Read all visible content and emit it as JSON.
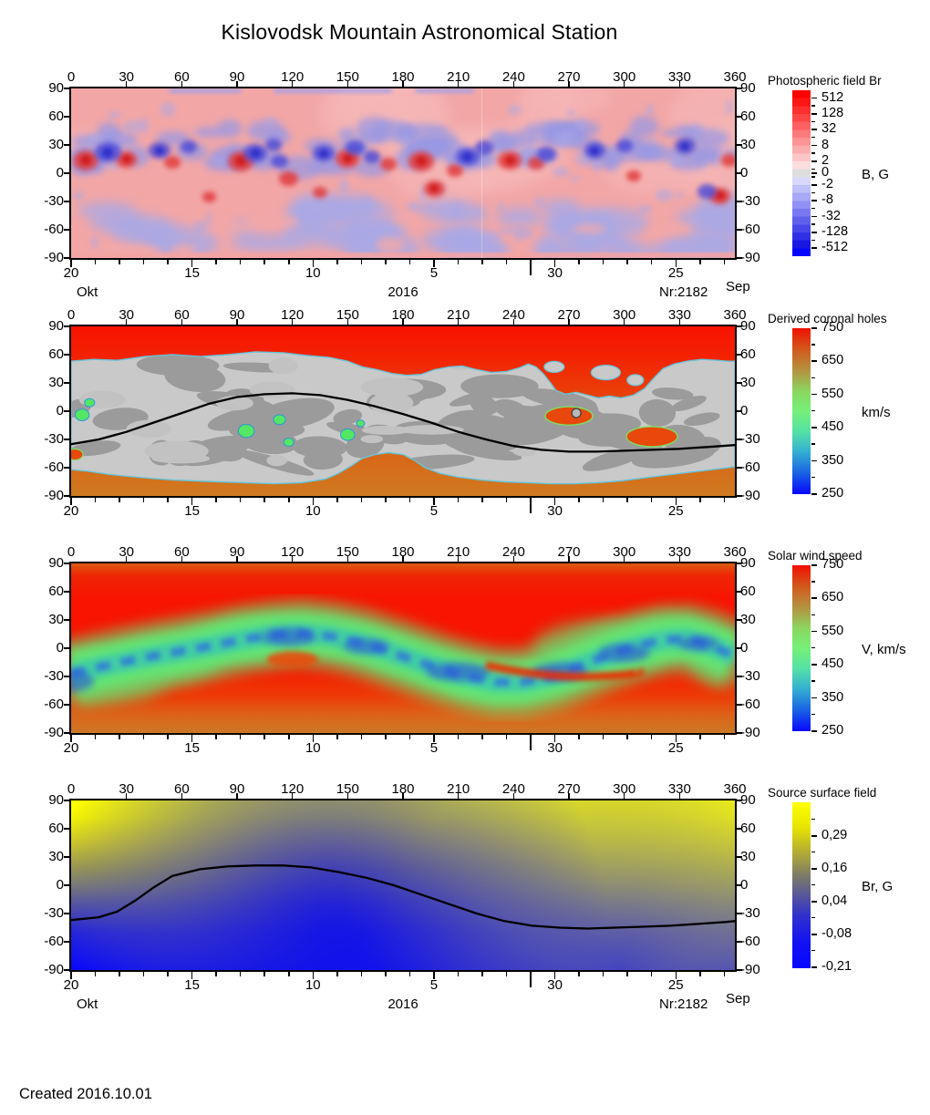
{
  "title": "Kislovodsk Mountain Astronomical Station",
  "created": "Created  2016.10.01",
  "axes": {
    "longitude_ticks": [
      0,
      30,
      60,
      90,
      120,
      150,
      180,
      210,
      240,
      270,
      300,
      330,
      360
    ],
    "latitude_ticks": [
      90,
      60,
      30,
      0,
      -30,
      -60,
      -90
    ],
    "day_labels": [
      "20",
      "15",
      "10",
      "5",
      "30",
      "25"
    ],
    "month_start": "Okt",
    "year": "2016",
    "rotation_number": "Nr:2182",
    "month_end": "Sep"
  },
  "colors": {
    "red": "#f81200",
    "orange": "#cf7a20",
    "gray_light": "#c9c9c9",
    "gray_dark": "#9b9b9b",
    "outline": "#66c4da",
    "map1_bg": "#f2a6a6",
    "map1_pink": "#f6b6b6",
    "map1_blue": "#9898e4",
    "map1_blue_soft": "#a9a9e6",
    "map1_blue_strong": "#4848d8",
    "map1_red_strong": "#e23c3c",
    "green_spot": "#55e664",
    "lagoon": "#e8480c",
    "band_green": "#62e874",
    "band_teal": "#38c8b0",
    "band_blue": "#2f6ee0",
    "yellow": "#ffff00",
    "deep_blue": "#0606ff",
    "line": "#000000"
  },
  "chart_data": [
    {
      "type": "heatmap",
      "title": "Photospheric field Br",
      "x_range": [
        0,
        360
      ],
      "y_range": [
        -90,
        90
      ],
      "description": "Mottled synoptic map of radial photospheric magnetic field: pale red positive background, pale blue negative patches in northern activity band (lat 10..45) and across the southern hemisphere, with saturated red and dark blue active-region blobs near lat 10..30.",
      "colorbar": {
        "title": "Photospheric field Br",
        "unit": "B, G",
        "tick_labels": [
          "512",
          "128",
          "32",
          "8",
          "2",
          "0",
          "-2",
          "-8",
          "-32",
          "-128",
          "-512"
        ],
        "band_colors": [
          "#fc0000",
          "#fc1616",
          "#fc2e2e",
          "#fc4646",
          "#fc6060",
          "#fc7a7a",
          "#fc9494",
          "#fcaeae",
          "#fcc6c6",
          "#fcdede",
          "#dedede",
          "#d8d8fc",
          "#c0c0fa",
          "#a8a8f8",
          "#9090f6",
          "#7878f2",
          "#6060ee",
          "#4848ea",
          "#3030e6",
          "#1818e2",
          "#0606fc"
        ]
      }
    },
    {
      "type": "heatmap",
      "title": "Derived coronal holes",
      "x_range": [
        0,
        360
      ],
      "y_range": [
        -90,
        90
      ],
      "description": "Red/orange polar coronal holes, light-gray closed-field belt with dark-gray patches, cyan hole boundaries, small green and orange equatorial holes, black neutral line.",
      "colorbar": {
        "title": "Derived coronal holes",
        "unit": "km/s",
        "tick_labels": [
          "750",
          "650",
          "550",
          "450",
          "350",
          "250"
        ],
        "gradient": [
          [
            0,
            "#f20f00"
          ],
          [
            0.14,
            "#cf6020"
          ],
          [
            0.27,
            "#b09a44"
          ],
          [
            0.38,
            "#8ad75e"
          ],
          [
            0.5,
            "#76f07a"
          ],
          [
            0.62,
            "#55e2a4"
          ],
          [
            0.74,
            "#35b2d0"
          ],
          [
            0.87,
            "#1a64e4"
          ],
          [
            1,
            "#0707fc"
          ]
        ]
      },
      "neutral_line": [
        [
          0,
          -35
        ],
        [
          15,
          -30
        ],
        [
          30,
          -22
        ],
        [
          45,
          -12
        ],
        [
          60,
          -2
        ],
        [
          75,
          8
        ],
        [
          90,
          15
        ],
        [
          105,
          18
        ],
        [
          120,
          19
        ],
        [
          135,
          17
        ],
        [
          150,
          12
        ],
        [
          165,
          5
        ],
        [
          180,
          -3
        ],
        [
          195,
          -12
        ],
        [
          210,
          -22
        ],
        [
          225,
          -30
        ],
        [
          240,
          -37
        ],
        [
          255,
          -41
        ],
        [
          270,
          -43
        ],
        [
          285,
          -43
        ],
        [
          300,
          -42
        ],
        [
          315,
          -41
        ],
        [
          330,
          -40
        ],
        [
          345,
          -38
        ],
        [
          360,
          -36
        ]
      ],
      "gray_region": {
        "north": [
          [
            0,
            53
          ],
          [
            12,
            55
          ],
          [
            25,
            54
          ],
          [
            40,
            58
          ],
          [
            55,
            60
          ],
          [
            70,
            58
          ],
          [
            85,
            60
          ],
          [
            100,
            63
          ],
          [
            115,
            62
          ],
          [
            128,
            59
          ],
          [
            140,
            57
          ],
          [
            150,
            53
          ],
          [
            158,
            47
          ],
          [
            166,
            44
          ],
          [
            174,
            40
          ],
          [
            182,
            38
          ],
          [
            190,
            39
          ],
          [
            197,
            44
          ],
          [
            205,
            47
          ],
          [
            212,
            48
          ],
          [
            220,
            44
          ],
          [
            228,
            41
          ],
          [
            236,
            42
          ],
          [
            243,
            46
          ],
          [
            248,
            50
          ],
          [
            252,
            47
          ],
          [
            256,
            40
          ],
          [
            260,
            30
          ],
          [
            263,
            22
          ],
          [
            268,
            18
          ],
          [
            274,
            20
          ],
          [
            280,
            17
          ],
          [
            286,
            14
          ],
          [
            292,
            16
          ],
          [
            298,
            14
          ],
          [
            305,
            17
          ],
          [
            311,
            24
          ],
          [
            316,
            35
          ],
          [
            321,
            45
          ],
          [
            327,
            50
          ],
          [
            334,
            53
          ],
          [
            342,
            55
          ],
          [
            350,
            54
          ],
          [
            356,
            53
          ],
          [
            360,
            53
          ]
        ],
        "south": [
          [
            0,
            -62
          ],
          [
            10,
            -64
          ],
          [
            20,
            -67
          ],
          [
            30,
            -69
          ],
          [
            42,
            -71
          ],
          [
            55,
            -73
          ],
          [
            68,
            -74
          ],
          [
            80,
            -75
          ],
          [
            95,
            -76
          ],
          [
            110,
            -77
          ],
          [
            125,
            -76
          ],
          [
            138,
            -72
          ],
          [
            145,
            -66
          ],
          [
            152,
            -58
          ],
          [
            158,
            -50
          ],
          [
            165,
            -46
          ],
          [
            172,
            -44
          ],
          [
            180,
            -46
          ],
          [
            186,
            -52
          ],
          [
            192,
            -60
          ],
          [
            200,
            -66
          ],
          [
            210,
            -70
          ],
          [
            222,
            -73
          ],
          [
            235,
            -75
          ],
          [
            248,
            -76
          ],
          [
            260,
            -77
          ],
          [
            272,
            -77
          ],
          [
            285,
            -76
          ],
          [
            298,
            -74
          ],
          [
            310,
            -71
          ],
          [
            322,
            -68
          ],
          [
            335,
            -65
          ],
          [
            348,
            -62
          ],
          [
            356,
            -60
          ],
          [
            360,
            -59
          ]
        ]
      },
      "green_spots": [
        [
          6,
          -4,
          7
        ],
        [
          10,
          9,
          5
        ],
        [
          95,
          -21,
          8
        ],
        [
          113,
          -9,
          6
        ],
        [
          118,
          -33,
          5
        ],
        [
          150,
          -25,
          7
        ],
        [
          157,
          -13,
          4
        ]
      ],
      "lagoons": [
        [
          270,
          -5,
          26,
          10
        ],
        [
          315,
          -27,
          28,
          11
        ]
      ],
      "islands": [
        [
          262,
          47,
          11,
          6
        ],
        [
          290,
          41,
          16,
          8
        ],
        [
          306,
          33,
          9,
          6
        ]
      ]
    },
    {
      "type": "heatmap",
      "title": "Solar wind speed",
      "x_range": [
        0,
        360
      ],
      "y_range": [
        -90,
        90
      ],
      "description": "Fast red wind at high latitudes shading to orange at poles, wavy green slow-wind belt with teal/blue core tracking the neutral line.",
      "colorbar": {
        "title": "Solar wind speed",
        "unit": "V, km/s",
        "tick_labels": [
          "750",
          "650",
          "550",
          "450",
          "350",
          "250"
        ],
        "gradient": [
          [
            0,
            "#f20f00"
          ],
          [
            0.14,
            "#cf6020"
          ],
          [
            0.27,
            "#b09a44"
          ],
          [
            0.38,
            "#8ad75e"
          ],
          [
            0.5,
            "#76f07a"
          ],
          [
            0.62,
            "#55e2a4"
          ],
          [
            0.74,
            "#35b2d0"
          ],
          [
            0.87,
            "#1a64e4"
          ],
          [
            1,
            "#0707fc"
          ]
        ]
      },
      "band": [
        [
          0,
          -27
        ],
        [
          20,
          -18
        ],
        [
          40,
          -10
        ],
        [
          60,
          -3
        ],
        [
          80,
          4
        ],
        [
          95,
          10
        ],
        [
          110,
          14
        ],
        [
          125,
          16
        ],
        [
          140,
          13
        ],
        [
          155,
          7
        ],
        [
          170,
          -2
        ],
        [
          185,
          -12
        ],
        [
          200,
          -22
        ],
        [
          215,
          -30
        ],
        [
          230,
          -36
        ],
        [
          245,
          -36
        ],
        [
          260,
          -30
        ],
        [
          272,
          -22
        ],
        [
          285,
          -12
        ],
        [
          298,
          -3
        ],
        [
          310,
          4
        ],
        [
          322,
          9
        ],
        [
          334,
          10
        ],
        [
          346,
          4
        ],
        [
          356,
          -5
        ],
        [
          360,
          -8
        ]
      ]
    },
    {
      "type": "heatmap",
      "title": "Source surface field",
      "x_range": [
        0,
        360
      ],
      "y_range": [
        -90,
        90
      ],
      "description": "Smooth dipolar source-surface field: yellow positive north, blue negative south, gray transition, black neutral line.",
      "colorbar": {
        "title": "Source surface field",
        "unit": "Br, G",
        "tick_labels": [
          "0,29",
          "0,16",
          "0,04",
          "-0,08",
          "-0,21"
        ],
        "gradient": [
          [
            0,
            "#ffff00"
          ],
          [
            0.15,
            "#e8e403"
          ],
          [
            0.3,
            "#b3ad33"
          ],
          [
            0.44,
            "#7e7c66"
          ],
          [
            0.55,
            "#5a5a96"
          ],
          [
            0.68,
            "#3232cc"
          ],
          [
            0.84,
            "#1212f2"
          ],
          [
            1,
            "#0606ff"
          ]
        ]
      },
      "neutral_line": [
        [
          0,
          -37
        ],
        [
          15,
          -34
        ],
        [
          25,
          -28
        ],
        [
          35,
          -16
        ],
        [
          45,
          -2
        ],
        [
          55,
          10
        ],
        [
          70,
          17
        ],
        [
          85,
          20
        ],
        [
          100,
          21
        ],
        [
          115,
          21
        ],
        [
          130,
          19
        ],
        [
          145,
          14
        ],
        [
          160,
          8
        ],
        [
          175,
          0
        ],
        [
          190,
          -10
        ],
        [
          205,
          -20
        ],
        [
          220,
          -30
        ],
        [
          235,
          -38
        ],
        [
          250,
          -43
        ],
        [
          265,
          -45
        ],
        [
          280,
          -46
        ],
        [
          295,
          -45
        ],
        [
          310,
          -44
        ],
        [
          325,
          -43
        ],
        [
          340,
          -41
        ],
        [
          355,
          -39
        ],
        [
          360,
          -38
        ]
      ]
    }
  ]
}
